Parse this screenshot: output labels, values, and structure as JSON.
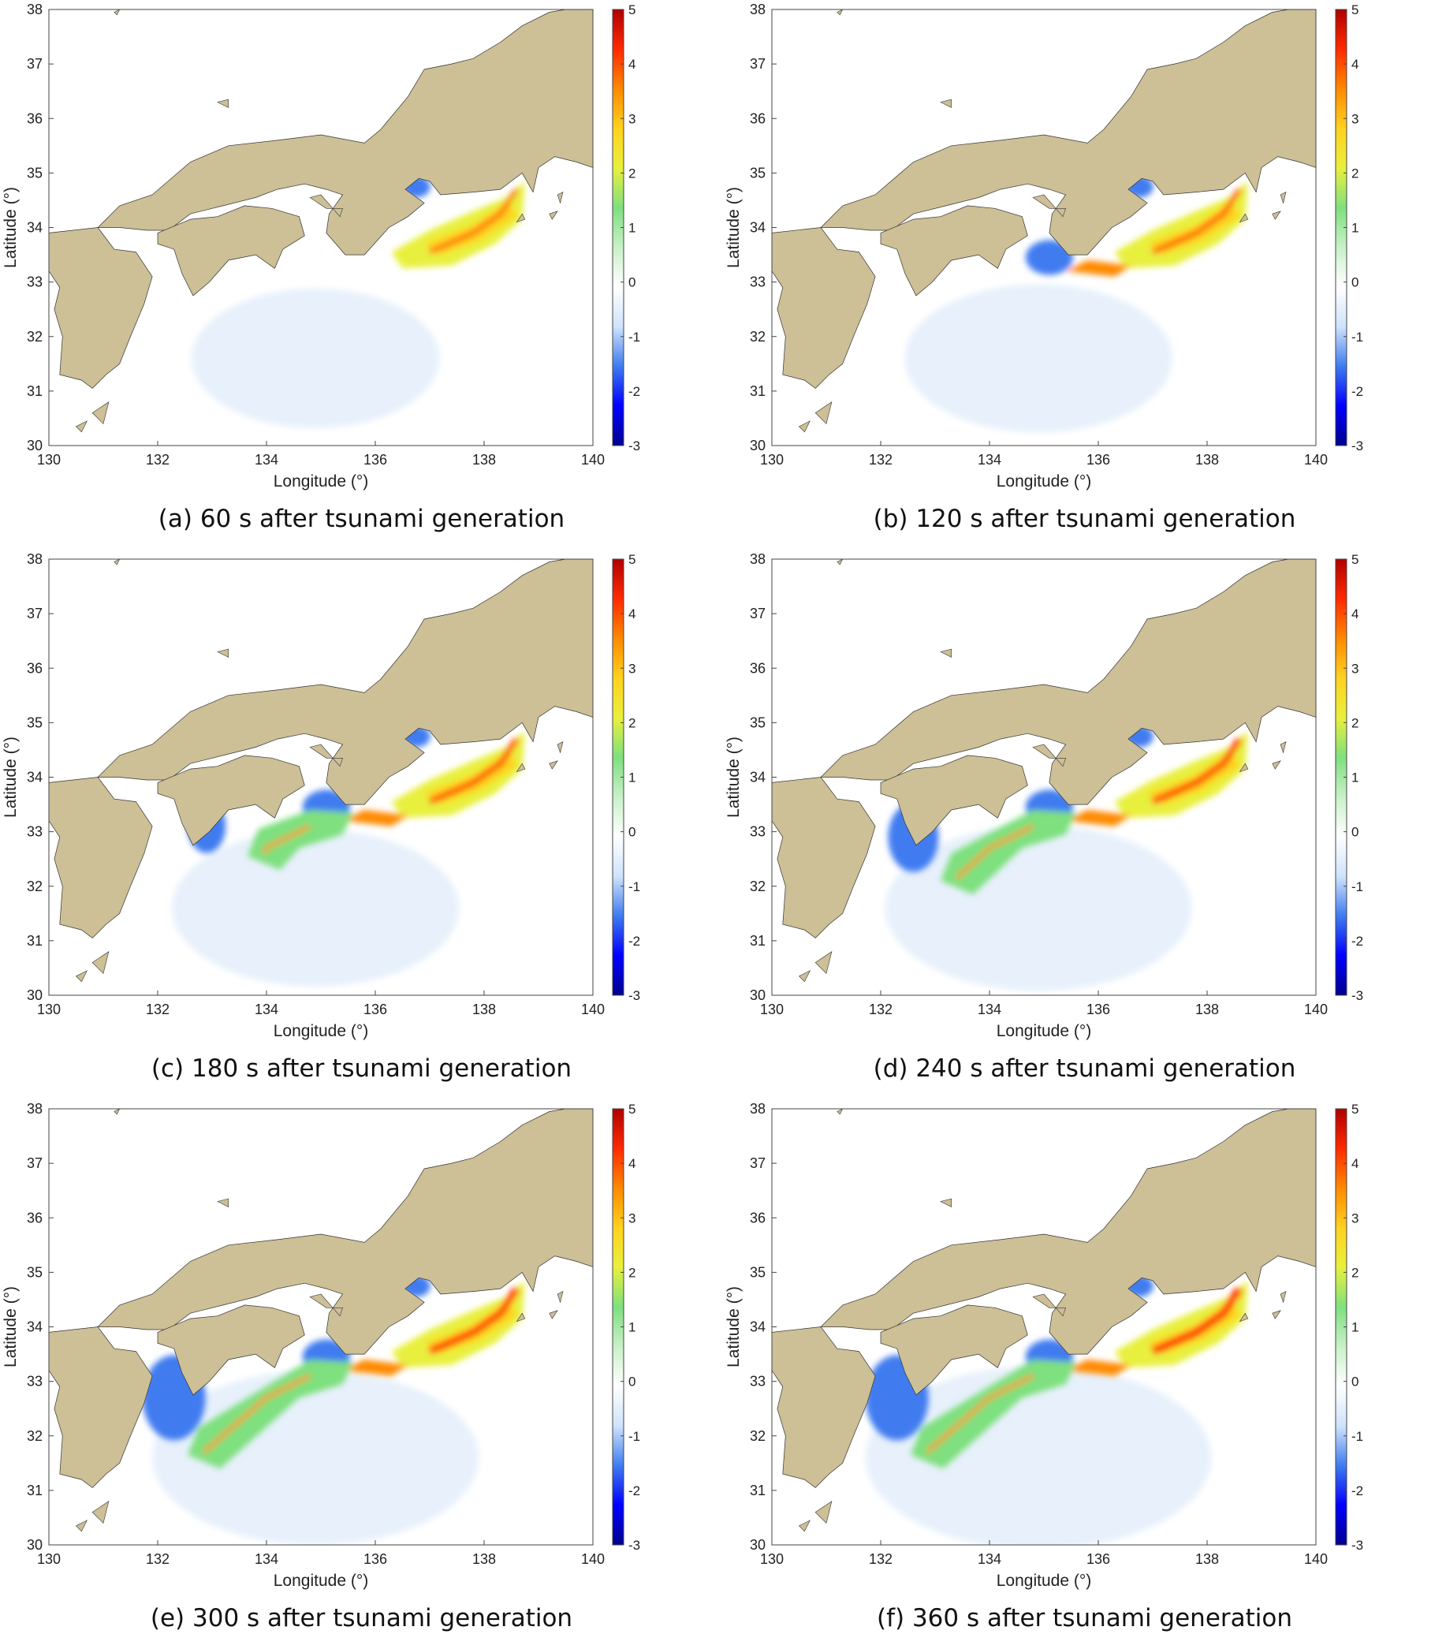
{
  "colors": {
    "land": "#cdbf96",
    "ocean": "#ffffff",
    "light_water": "#e6f0fb",
    "colormap": [
      "#00008f",
      "#0000ff",
      "#3f7cf0",
      "#cfe3fb",
      "#ffffff",
      "#c8f0c8",
      "#7ee07e",
      "#e8f03c",
      "#ffd21e",
      "#ff8a00",
      "#ff2a00",
      "#b00000"
    ]
  },
  "axes": {
    "xlabel": "Longitude (°)",
    "ylabel": "Latitude (°)",
    "xlim": [
      130,
      140
    ],
    "ylim": [
      30,
      38
    ],
    "xticks": [
      "130",
      "132",
      "134",
      "136",
      "138",
      "140"
    ],
    "yticks": [
      "30",
      "31",
      "32",
      "33",
      "34",
      "35",
      "36",
      "37",
      "38"
    ]
  },
  "colorbar": {
    "range": [
      -3,
      5
    ],
    "ticks": [
      "5",
      "4",
      "3",
      "2",
      "1",
      "0",
      "-1",
      "-2",
      "-3"
    ]
  },
  "panels": [
    {
      "caption": "(a) 60 s after tsunami generation",
      "stage": 1
    },
    {
      "caption": "(b) 120 s after tsunami generation",
      "stage": 2
    },
    {
      "caption": "(c) 180 s after tsunami generation",
      "stage": 3
    },
    {
      "caption": "(d) 240 s after tsunami generation",
      "stage": 4
    },
    {
      "caption": "(e) 300 s after tsunami generation",
      "stage": 5
    },
    {
      "caption": "(f) 360 s after tsunami generation",
      "stage": 6
    }
  ]
}
